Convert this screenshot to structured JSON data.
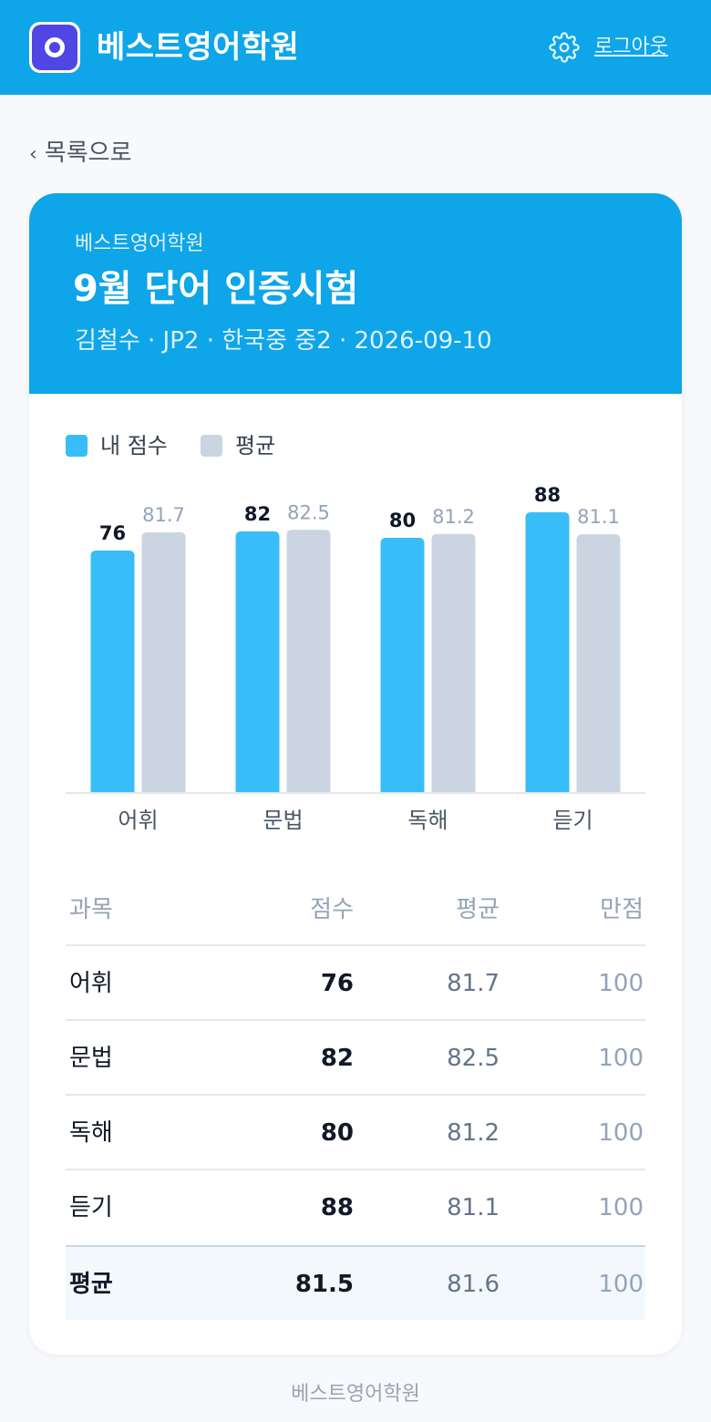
{
  "header": {
    "brand": "베스트영어학원",
    "logout_label": "로그아웃"
  },
  "nav": {
    "back_label": "목록으로"
  },
  "report": {
    "academy": "베스트영어학원",
    "title": "9월 단어 인증시험",
    "meta": "김철수 · JP2 · 한국중 중2 · 2026-09-10"
  },
  "legend": {
    "mine": "내 점수",
    "average": "평균"
  },
  "colors": {
    "brand": "#0ea5e9",
    "mine": "#38bdf8",
    "average": "#cbd5e1"
  },
  "chart_data": {
    "type": "bar",
    "categories": [
      "어휘",
      "문법",
      "독해",
      "듣기"
    ],
    "series": [
      {
        "name": "내 점수",
        "values": [
          76,
          82,
          80,
          88
        ]
      },
      {
        "name": "평균",
        "values": [
          81.7,
          82.5,
          81.2,
          81.1
        ]
      }
    ],
    "ylim": [
      0,
      100
    ],
    "legend_position": "top-left",
    "grid": false
  },
  "table": {
    "headers": [
      "과목",
      "점수",
      "평균",
      "만점"
    ],
    "rows": [
      {
        "subject": "어휘",
        "score": "76",
        "average": "81.7",
        "max": "100"
      },
      {
        "subject": "문법",
        "score": "82",
        "average": "82.5",
        "max": "100"
      },
      {
        "subject": "독해",
        "score": "80",
        "average": "81.2",
        "max": "100"
      },
      {
        "subject": "듣기",
        "score": "88",
        "average": "81.1",
        "max": "100"
      }
    ],
    "summary": {
      "subject": "평균",
      "score": "81.5",
      "average": "81.6",
      "max": "100"
    }
  },
  "footer": {
    "text": "베스트영어학원"
  }
}
